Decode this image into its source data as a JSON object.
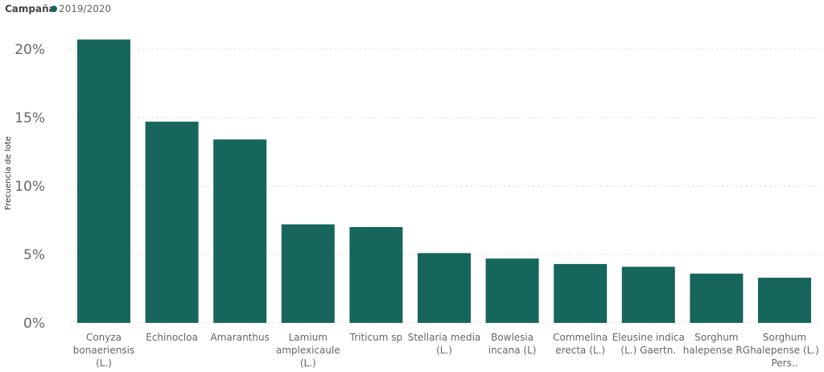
{
  "chart_data": {
    "type": "bar",
    "legend": {
      "title": "Campaña",
      "position": "top-left",
      "entries": [
        {
          "name": "2019/2020",
          "color": "#17665c"
        }
      ]
    },
    "ylabel": "Frecuencia de lote",
    "xlabel": "",
    "ylim": [
      0,
      22
    ],
    "yticks": [
      {
        "value": 0,
        "label": "0%"
      },
      {
        "value": 5,
        "label": "5%"
      },
      {
        "value": 10,
        "label": "10%"
      },
      {
        "value": 15,
        "label": "15%"
      },
      {
        "value": 20,
        "label": "20%"
      }
    ],
    "grid": true,
    "categories": [
      [
        "Conyza",
        "bonaeriensis",
        "(L.)"
      ],
      [
        "Echinocloa"
      ],
      [
        "Amaranthus"
      ],
      [
        "Lamium",
        "amplexicaule",
        "(L.)"
      ],
      [
        "Triticum sp"
      ],
      [
        "Stellaria media",
        "(L.)"
      ],
      [
        "Bowlesia",
        "incana (L)"
      ],
      [
        "Commelina",
        "erecta (L.)"
      ],
      [
        "Eleusine indica",
        "(L.) Gaertn."
      ],
      [
        "Sorghum",
        "halepense RG"
      ],
      [
        "Sorghum",
        "halepense (L.)",
        "Pers.."
      ]
    ],
    "series": [
      {
        "name": "2019/2020",
        "color": "#17665c",
        "values": [
          20.7,
          14.7,
          13.4,
          7.2,
          7.0,
          5.1,
          4.7,
          4.3,
          4.1,
          3.6,
          3.3
        ]
      }
    ]
  }
}
